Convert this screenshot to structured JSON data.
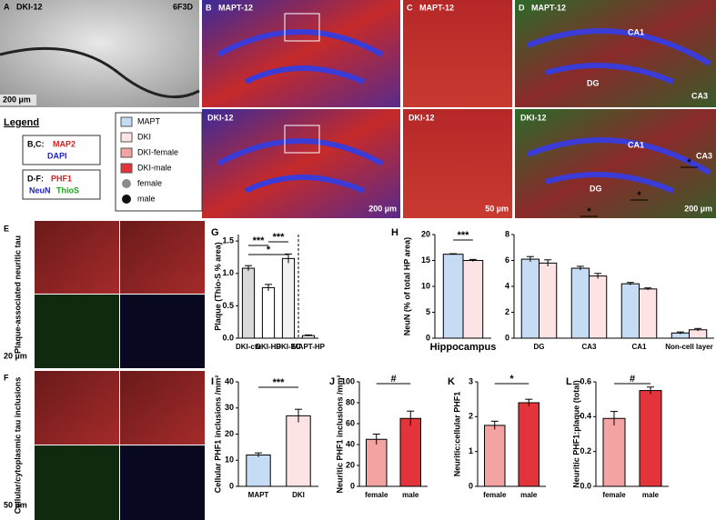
{
  "panels": {
    "A": {
      "letter": "A",
      "title": "DKI-12",
      "id": "6F3D",
      "scale": "200 µm"
    },
    "B": {
      "letter": "B",
      "top": "MAPT-12",
      "bottom": "DKI-12",
      "scale": "200 µm"
    },
    "C": {
      "letter": "C",
      "top": "MAPT-12",
      "bottom": "DKI-12",
      "scale": "50 µm"
    },
    "D": {
      "letter": "D",
      "top": "MAPT-12",
      "top_regions": [
        "CA1",
        "DG",
        "CA3"
      ],
      "bottom": "DKI-12",
      "bottom_regions": [
        "CA1",
        "CA3",
        "DG"
      ],
      "scale": "200 µm"
    },
    "E": {
      "letter": "E",
      "side": "Plaque-associated neuritic tau",
      "scale": "20 µm"
    },
    "F": {
      "letter": "F",
      "side": "Cellular/cytoplasmic tau inclusions",
      "scale": "50 µm"
    }
  },
  "legend": {
    "title": "Legend",
    "bc_prefix": "B,C:",
    "bc_red": "MAP2",
    "bc_blue": "DAPI",
    "df_prefix": "D-F:",
    "df_red": "PHF1",
    "df_blue": "NeuN",
    "df_green": "ThioS",
    "keys": [
      {
        "label": "MAPT",
        "color": "#c6dcf4"
      },
      {
        "label": "DKI",
        "color": "#fde3e3"
      },
      {
        "label": "DKI-female",
        "color": "#f4a3a3"
      },
      {
        "label": "DKI-male",
        "color": "#e4343b"
      },
      {
        "label": "female",
        "color": "#8c8c8c"
      },
      {
        "label": "male",
        "color": "#111111"
      }
    ]
  },
  "chart_data": [
    {
      "type": "bar",
      "panel": "G",
      "ylabel": "Plaque (Thio-S % area)",
      "categories": [
        "DKI-ctx",
        "DKI-HP",
        "DKI-EC",
        "MAPT-HP"
      ],
      "values": [
        1.08,
        0.78,
        1.23,
        0.04
      ],
      "errors": [
        0.04,
        0.05,
        0.07,
        0.01
      ],
      "colors": [
        "#d9d9d9",
        "#ffffff",
        "#f2f2f2",
        "#ffffff"
      ],
      "ylim": [
        0,
        1.6
      ],
      "yticks": [
        {
          "value": 0,
          "label": "0.0"
        },
        {
          "value": 0.5,
          "label": "0.5"
        },
        {
          "value": 1,
          "label": "1.0"
        },
        {
          "value": 1.5,
          "label": "1.5"
        }
      ],
      "annotations": [
        "***",
        "*",
        "***"
      ]
    },
    {
      "type": "grouped-bar",
      "panel": "H",
      "ylabel": "NeuN (% of total HP area)",
      "categories": [
        "Hippocampus"
      ],
      "series": [
        {
          "name": "MAPT",
          "color": "#c6dcf4",
          "values": [
            16.2
          ],
          "errors": [
            0.1
          ]
        },
        {
          "name": "DKI",
          "color": "#fde3e3",
          "values": [
            15.0
          ],
          "errors": [
            0.2
          ]
        }
      ],
      "ylim": [
        0,
        20
      ],
      "yticks": [
        0,
        5,
        10,
        15,
        20
      ],
      "annotations": [
        "***"
      ]
    },
    {
      "type": "grouped-bar",
      "categories": [
        "DG",
        "CA3",
        "CA1",
        "Non-cell layer"
      ],
      "series": [
        {
          "name": "MAPT",
          "color": "#c6dcf4",
          "values": [
            6.1,
            5.4,
            4.2,
            0.4
          ],
          "errors": [
            0.2,
            0.15,
            0.1,
            0.08
          ]
        },
        {
          "name": "DKI",
          "color": "#fde3e3",
          "values": [
            5.8,
            4.8,
            3.8,
            0.65
          ],
          "errors": [
            0.25,
            0.2,
            0.08,
            0.1
          ]
        }
      ],
      "ylim": [
        0,
        8
      ],
      "yticks": [
        0,
        2,
        4,
        6,
        8
      ],
      "annotations": [
        "*",
        "*",
        "*"
      ]
    },
    {
      "type": "bar",
      "panel": "I",
      "ylabel": "Cellular PHF1 inclusions /mm²",
      "categories": [
        "MAPT",
        "DKI"
      ],
      "values": [
        12,
        27
      ],
      "errors": [
        0.8,
        2.5
      ],
      "colors": [
        "#c6dcf4",
        "#fde3e3"
      ],
      "ylim": [
        0,
        40
      ],
      "yticks": [
        0,
        10,
        20,
        30,
        40
      ],
      "annotations": [
        "***"
      ]
    },
    {
      "type": "bar",
      "panel": "J",
      "ylabel": "Neuritic PHF1 inclusions /mm²",
      "categories": [
        "female",
        "male"
      ],
      "values": [
        45,
        65
      ],
      "errors": [
        5,
        7
      ],
      "colors": [
        "#f4a3a3",
        "#e4343b"
      ],
      "ylim": [
        0,
        100
      ],
      "yticks": [
        0,
        20,
        40,
        60,
        80,
        100
      ],
      "annotations": [
        "#"
      ]
    },
    {
      "type": "bar",
      "panel": "K",
      "ylabel": "Neuritic:cellular PHF1",
      "categories": [
        "female",
        "male"
      ],
      "values": [
        1.75,
        2.4
      ],
      "errors": [
        0.12,
        0.1
      ],
      "colors": [
        "#f4a3a3",
        "#e4343b"
      ],
      "ylim": [
        0,
        3
      ],
      "yticks": [
        0,
        1,
        2,
        3
      ],
      "annotations": [
        "*"
      ]
    },
    {
      "type": "bar",
      "panel": "L",
      "ylabel": "Neuritic PHF1:plaque (total)",
      "categories": [
        "female",
        "male"
      ],
      "values": [
        0.39,
        0.55
      ],
      "errors": [
        0.04,
        0.02
      ],
      "colors": [
        "#f4a3a3",
        "#e4343b"
      ],
      "ylim": [
        0,
        0.6
      ],
      "yticks": [
        {
          "value": 0,
          "label": "0.0"
        },
        {
          "value": 0.2,
          "label": "0.2"
        },
        {
          "value": 0.4,
          "label": "0.4"
        },
        {
          "value": 0.6,
          "label": "0.6"
        }
      ],
      "annotations": [
        "#"
      ]
    }
  ]
}
